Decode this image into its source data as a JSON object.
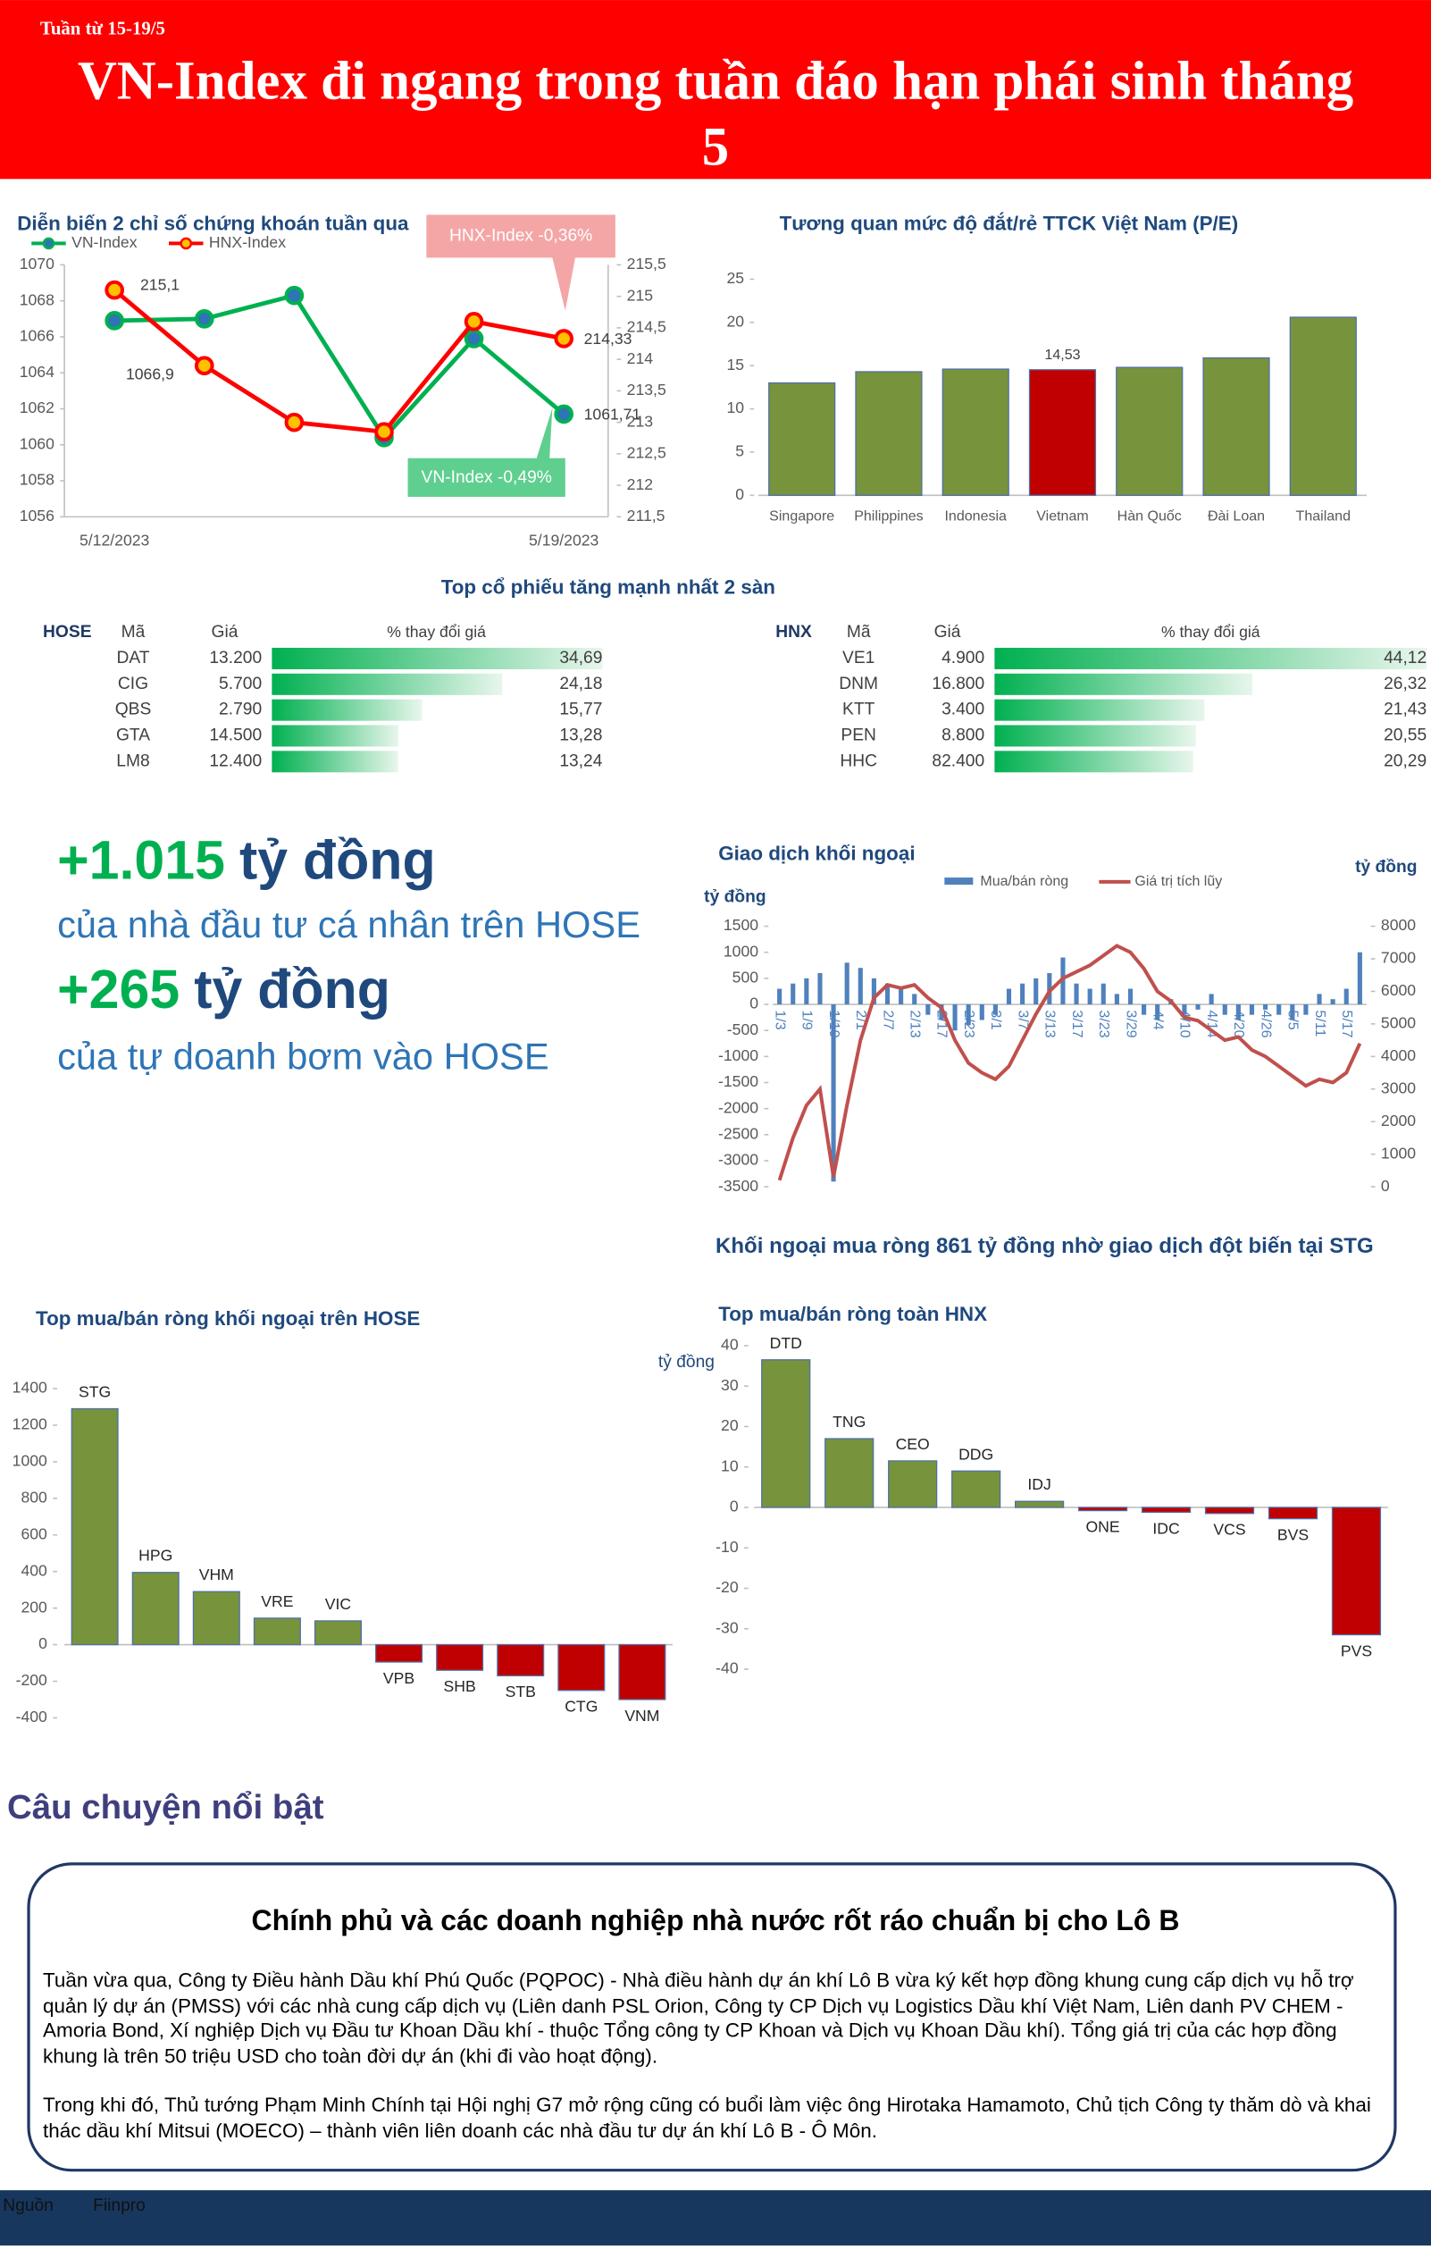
{
  "header": {
    "week": "Tuần từ 15-19/5",
    "title": "VN-Index đi ngang trong tuần đáo hạn phái sinh tháng 5"
  },
  "chart_data": [
    {
      "type": "line",
      "title": "Diễn biến 2 chỉ số chứng khoán tuần qua",
      "categories": [
        "5/12/2023",
        null,
        null,
        null,
        null,
        "5/19/2023"
      ],
      "series": [
        {
          "name": "VN-Index",
          "color": "#00b050",
          "marker_color": "#2e75b6",
          "values": [
            1066.9,
            1067.0,
            1068.3,
            1060.4,
            1065.9,
            1061.71
          ],
          "value_labels": [
            "1066,9",
            null,
            null,
            null,
            null,
            "1061,71"
          ]
        },
        {
          "name": "HNX-Index",
          "color": "#ff0000",
          "marker_color": "#ffc000",
          "axis": "y2",
          "values": [
            215.1,
            213.9,
            213.0,
            212.85,
            214.6,
            214.33
          ],
          "value_labels": [
            "215,1",
            null,
            null,
            null,
            null,
            "214,33"
          ]
        }
      ],
      "ylim": [
        1056,
        1070
      ],
      "yticks": [
        1056,
        1058,
        1060,
        1062,
        1064,
        1066,
        1068,
        1070
      ],
      "y2lim": [
        211.5,
        215.5
      ],
      "y2ticks": [
        {
          "value": 211.5,
          "label": "211,5"
        },
        212,
        {
          "value": 212.5,
          "label": "212,5"
        },
        213,
        {
          "value": 213.5,
          "label": "213,5"
        },
        214,
        {
          "value": 214.5,
          "label": "214,5"
        },
        215,
        {
          "value": 215.5,
          "label": "215,5"
        }
      ],
      "annotations": [
        "HNX-Index -0,36%",
        "VN-Index -0,49%"
      ]
    },
    {
      "type": "bar",
      "title": "Tương quan mức độ đắt/rẻ TTCK Việt Nam (P/E)",
      "categories": [
        "Singapore",
        "Philippines",
        "Indonesia",
        "Vietnam",
        "Hàn Quốc",
        "Đài Loan",
        "Thailand"
      ],
      "values": [
        13.0,
        14.3,
        14.6,
        14.53,
        14.8,
        15.9,
        20.6
      ],
      "value_labels": [
        null,
        null,
        null,
        "14,53",
        null,
        null,
        null
      ],
      "colors": [
        "#77933c",
        "#77933c",
        "#77933c",
        "#c00000",
        "#77933c",
        "#77933c",
        "#77933c"
      ],
      "ylim": [
        0,
        25
      ],
      "yticks": [
        0,
        5,
        10,
        15,
        20,
        25
      ]
    },
    {
      "type": "databar",
      "title": "Top cổ phiếu tăng mạnh nhất 2 sàn",
      "exchange": "HOSE",
      "columns": [
        "Mã",
        "Giá",
        "% thay đổi giá"
      ],
      "categories": [
        "DAT",
        "CIG",
        "QBS",
        "GTA",
        "LM8"
      ],
      "prices": [
        "13.200",
        "5.700",
        "2.790",
        "14.500",
        "12.400"
      ],
      "values": [
        34.69,
        24.18,
        15.77,
        13.28,
        13.24
      ],
      "value_labels": [
        "34,69",
        "24,18",
        "15,77",
        "13,28",
        "13,24"
      ],
      "color": "#00b050"
    },
    {
      "type": "databar",
      "exchange": "HNX",
      "columns": [
        "Mã",
        "Giá",
        "% thay đổi giá"
      ],
      "categories": [
        "VE1",
        "DNM",
        "KTT",
        "PEN",
        "HHC"
      ],
      "prices": [
        "4.900",
        "16.800",
        "3.400",
        "8.800",
        "82.400"
      ],
      "values": [
        44.12,
        26.32,
        21.43,
        20.55,
        20.29
      ],
      "value_labels": [
        "44,12",
        "26,32",
        "21,43",
        "20,55",
        "20,29"
      ],
      "color": "#00b050"
    },
    {
      "type": "combo",
      "title": "Giao dịch khối ngoại",
      "ylabel": "tỷ đồng",
      "y2label": "tỷ đồng",
      "categories": [
        "1/3",
        null,
        "1/9",
        null,
        "1/19",
        null,
        "2/1",
        null,
        "2/7",
        null,
        "2/13",
        null,
        "2/17",
        null,
        "2/23",
        null,
        "3/1",
        null,
        "3/7",
        null,
        "3/13",
        null,
        "3/17",
        null,
        "3/23",
        null,
        "3/29",
        null,
        "4/4",
        null,
        "4/10",
        null,
        "4/14",
        null,
        "4/20",
        null,
        "4/26",
        null,
        "5/5",
        null,
        "5/11",
        null,
        "5/17",
        null
      ],
      "series": [
        {
          "name": "Mua/bán ròng",
          "type": "bar",
          "color": "#4f81bd",
          "values": [
            300,
            400,
            500,
            600,
            -3400,
            800,
            700,
            500,
            400,
            300,
            200,
            -200,
            -300,
            -500,
            -400,
            -300,
            -200,
            300,
            400,
            500,
            600,
            900,
            400,
            300,
            400,
            200,
            300,
            -200,
            -300,
            100,
            -200,
            -100,
            200,
            -200,
            -300,
            -200,
            -100,
            -200,
            -300,
            -200,
            200,
            100,
            300,
            1000
          ]
        },
        {
          "name": "Giá trị tích lũy",
          "type": "line",
          "color": "#c0504d",
          "axis": "y2",
          "values": [
            200,
            1500,
            2500,
            3000,
            300,
            2500,
            4500,
            5800,
            6200,
            6100,
            6200,
            5800,
            5500,
            4500,
            3800,
            3500,
            3300,
            3700,
            4500,
            5300,
            6000,
            6400,
            6600,
            6800,
            7100,
            7400,
            7200,
            6700,
            6000,
            5700,
            5200,
            5100,
            4800,
            4500,
            4600,
            4200,
            4000,
            3700,
            3400,
            3100,
            3300,
            3200,
            3500,
            4400
          ]
        }
      ],
      "ylim": [
        -3500,
        1500
      ],
      "yticks": [
        -3500,
        -3000,
        -2500,
        -2000,
        -1500,
        -1000,
        -500,
        0,
        500,
        1000,
        1500
      ],
      "y2lim": [
        0,
        8000
      ],
      "y2ticks": [
        0,
        1000,
        2000,
        3000,
        4000,
        5000,
        6000,
        7000,
        8000
      ]
    },
    {
      "type": "bar",
      "title": "Top mua/bán ròng khối ngoại trên HOSE",
      "categories": [
        "STG",
        "HPG",
        "VHM",
        "VRE",
        "VIC",
        "VPB",
        "SHB",
        "STB",
        "CTG",
        "VNM"
      ],
      "values": [
        1290,
        395,
        290,
        145,
        130,
        -95,
        -140,
        -170,
        -250,
        -300
      ],
      "colors": [
        "#77933c",
        "#77933c",
        "#77933c",
        "#77933c",
        "#77933c",
        "#c00000",
        "#c00000",
        "#c00000",
        "#c00000",
        "#c00000"
      ],
      "ylim": [
        -400,
        1400
      ],
      "yticks": [
        -400,
        -200,
        0,
        200,
        400,
        600,
        800,
        1000,
        1200,
        1400
      ]
    },
    {
      "type": "bar",
      "title": "Top mua/bán ròng toàn HNX",
      "ylabel": "tỷ đồng",
      "categories": [
        "DTD",
        "TNG",
        "CEO",
        "DDG",
        "IDJ",
        "ONE",
        "IDC",
        "VCS",
        "BVS",
        "PVS"
      ],
      "values": [
        36.5,
        17,
        11.5,
        9,
        1.5,
        -0.8,
        -1.2,
        -1.5,
        -2.8,
        -31.5
      ],
      "colors": [
        "#77933c",
        "#77933c",
        "#77933c",
        "#77933c",
        "#77933c",
        "#c00000",
        "#c00000",
        "#c00000",
        "#c00000",
        "#c00000"
      ],
      "ylim": [
        -40,
        40
      ],
      "yticks": [
        -40,
        -30,
        -20,
        -10,
        0,
        10,
        20,
        30,
        40
      ]
    }
  ],
  "foreign_headline": "Khối ngoại mua ròng 861 tỷ đồng nhờ giao dịch đột biến tại STG",
  "highlights": [
    {
      "amount": "+1.015",
      "unit": "tỷ đồng",
      "text": "của nhà đầu tư cá nhân trên HOSE"
    },
    {
      "amount": "+265",
      "unit": "tỷ đồng",
      "text": "của tự doanh bơm vào HOSE"
    }
  ],
  "story": {
    "section": "Câu chuyện nổi bật",
    "heading": "Chính phủ và các doanh nghiệp nhà nước rốt ráo chuẩn bị cho Lô B",
    "paragraphs": [
      "Tuần vừa qua, Công ty Điều hành Dầu khí Phú Quốc (PQPOC) - Nhà điều hành dự án khí Lô B vừa ký kết hợp đồng khung cung cấp dịch vụ hỗ trợ quản lý dự án (PMSS) với các nhà cung cấp dịch vụ (Liên danh PSL Orion, Công ty CP Dịch vụ Logistics Dầu khí Việt Nam, Liên danh PV CHEM - Amoria Bond, Xí nghiệp Dịch vụ Đầu tư Khoan Dầu khí - thuộc Tổng công ty CP Khoan và Dịch vụ Khoan Dầu khí). Tổng giá trị của các hợp đồng khung là trên 50 triệu USD cho toàn đời dự án (khi đi vào hoạt động).",
      "Trong khi đó, Thủ tướng Phạm Minh Chính tại Hội nghị G7 mở rộng cũng có buổi làm việc ông Hirotaka Hamamoto, Chủ tịch Công ty thăm dò và khai thác dầu khí Mitsui (MOECO) – thành viên liên doanh các nhà đầu tư dự án khí Lô B - Ô Môn."
    ]
  },
  "footer": {
    "source_label": "Nguồn",
    "source": "Fiinpro"
  }
}
